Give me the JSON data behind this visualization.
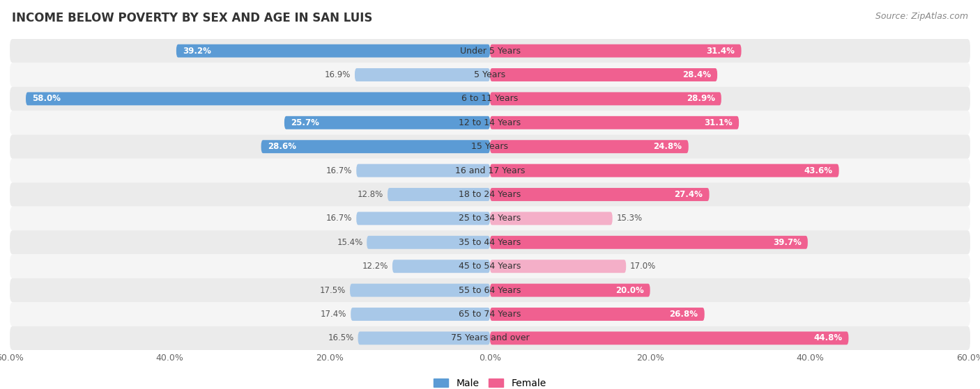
{
  "title": "INCOME BELOW POVERTY BY SEX AND AGE IN SAN LUIS",
  "source": "Source: ZipAtlas.com",
  "categories": [
    "Under 5 Years",
    "5 Years",
    "6 to 11 Years",
    "12 to 14 Years",
    "15 Years",
    "16 and 17 Years",
    "18 to 24 Years",
    "25 to 34 Years",
    "35 to 44 Years",
    "45 to 54 Years",
    "55 to 64 Years",
    "65 to 74 Years",
    "75 Years and over"
  ],
  "male": [
    39.2,
    16.9,
    58.0,
    25.7,
    28.6,
    16.7,
    12.8,
    16.7,
    15.4,
    12.2,
    17.5,
    17.4,
    16.5
  ],
  "female": [
    31.4,
    28.4,
    28.9,
    31.1,
    24.8,
    43.6,
    27.4,
    15.3,
    39.7,
    17.0,
    20.0,
    26.8,
    44.8
  ],
  "male_color_large": "#5b9bd5",
  "male_color_small": "#a8c8e8",
  "female_color_large": "#f06090",
  "female_color_small": "#f4afc8",
  "male_label": "Male",
  "female_label": "Female",
  "axis_limit": 60.0,
  "bg_odd": "#ebebeb",
  "bg_even": "#f5f5f5",
  "title_fontsize": 12,
  "source_fontsize": 9,
  "label_fontsize": 9,
  "value_fontsize": 8.5,
  "tick_fontsize": 9,
  "large_threshold": 20.0
}
